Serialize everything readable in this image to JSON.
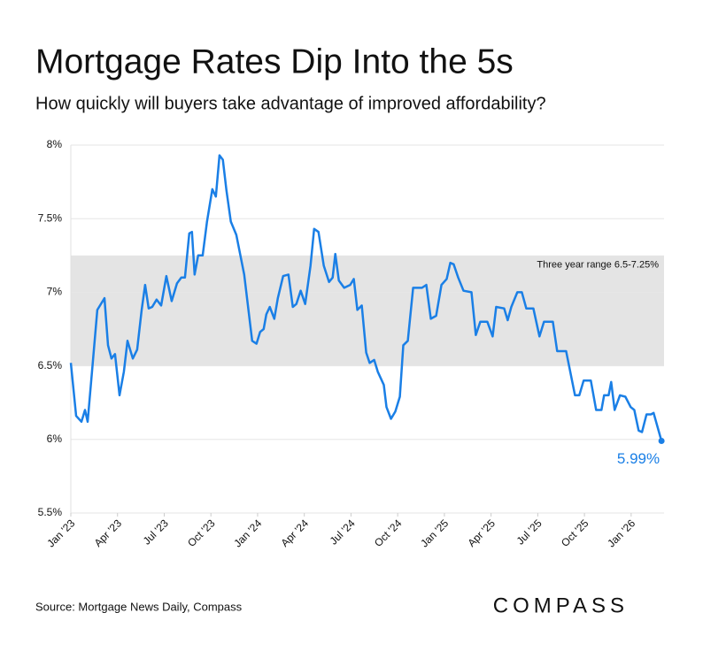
{
  "chart_data": {
    "type": "line",
    "title": "Mortgage Rates Dip Into the 5s",
    "subtitle": "How quickly will buyers take advantage of improved affordability?",
    "source": "Source: Mortgage News Daily, Compass",
    "brand": "COMPASS",
    "band": {
      "range": [
        6.5,
        7.25
      ],
      "label": "Three year range 6.5-7.25%",
      "color": "#e4e4e4"
    },
    "end_label": {
      "x": 37.95,
      "value": 5.99,
      "label": "5.99%"
    },
    "xlim": [
      0,
      38
    ],
    "xticks": [
      {
        "value": 0,
        "label": "Jan '23"
      },
      {
        "value": 3,
        "label": "Apr '23"
      },
      {
        "value": 6,
        "label": "Jul '23"
      },
      {
        "value": 9,
        "label": "Oct '23"
      },
      {
        "value": 12,
        "label": "Jan '24"
      },
      {
        "value": 15,
        "label": "Apr '24"
      },
      {
        "value": 18,
        "label": "Jul '24"
      },
      {
        "value": 21,
        "label": "Oct '24"
      },
      {
        "value": 24,
        "label": "Jan '25"
      },
      {
        "value": 27,
        "label": "Apr '25"
      },
      {
        "value": 30,
        "label": "Jul '25"
      },
      {
        "value": 33,
        "label": "Oct '25"
      },
      {
        "value": 36,
        "label": "Jan '26"
      }
    ],
    "ylim": [
      5.5,
      8
    ],
    "yticks": [
      {
        "value": 5.5,
        "label": "5.5%"
      },
      {
        "value": 6,
        "label": "6%"
      },
      {
        "value": 6.5,
        "label": "6.5%"
      },
      {
        "value": 7,
        "label": "7%"
      },
      {
        "value": 7.5,
        "label": "7.5%"
      },
      {
        "value": 8,
        "label": "8%"
      }
    ],
    "grid": true,
    "series": [
      {
        "color": "#1a7fe6",
        "x": [
          0,
          0.34,
          0.68,
          0.91,
          1.08,
          1.36,
          1.7,
          2.16,
          2.39,
          2.61,
          2.84,
          3.13,
          3.41,
          3.64,
          3.98,
          4.26,
          4.55,
          4.77,
          5,
          5.23,
          5.51,
          5.8,
          6.14,
          6.48,
          6.82,
          7.1,
          7.33,
          7.61,
          7.78,
          7.95,
          8.18,
          8.47,
          8.75,
          9.09,
          9.32,
          9.55,
          9.77,
          10,
          10.28,
          10.63,
          11.14,
          11.65,
          11.93,
          12.16,
          12.39,
          12.56,
          12.78,
          13.07,
          13.3,
          13.64,
          13.98,
          14.26,
          14.49,
          14.77,
          15.06,
          15.4,
          15.63,
          15.91,
          16.25,
          16.59,
          16.82,
          16.99,
          17.22,
          17.56,
          17.95,
          18.18,
          18.41,
          18.69,
          18.98,
          19.2,
          19.49,
          19.72,
          20.11,
          20.28,
          20.57,
          20.85,
          21.14,
          21.36,
          21.65,
          21.99,
          22.27,
          22.56,
          22.84,
          23.13,
          23.47,
          23.81,
          24.15,
          24.38,
          24.6,
          24.89,
          25.23,
          25.74,
          26.02,
          26.31,
          26.76,
          27.1,
          27.33,
          27.84,
          28.07,
          28.3,
          28.69,
          28.98,
          29.26,
          29.72,
          30.11,
          30.4,
          30.97,
          31.25,
          31.82,
          32.39,
          32.67,
          32.95,
          33.41,
          33.75,
          34.09,
          34.26,
          34.55,
          34.72,
          34.94,
          35.28,
          35.63,
          35.97,
          36.2,
          36.48,
          36.7,
          36.99,
          37.27,
          37.44,
          37.95
        ],
        "values": [
          6.52,
          6.16,
          6.12,
          6.2,
          6.12,
          6.46,
          6.88,
          6.96,
          6.64,
          6.55,
          6.58,
          6.3,
          6.46,
          6.67,
          6.55,
          6.61,
          6.88,
          7.05,
          6.89,
          6.9,
          6.95,
          6.91,
          7.11,
          6.94,
          7.06,
          7.1,
          7.1,
          7.4,
          7.41,
          7.12,
          7.25,
          7.25,
          7.48,
          7.7,
          7.65,
          7.93,
          7.9,
          7.69,
          7.48,
          7.39,
          7.12,
          6.67,
          6.65,
          6.73,
          6.75,
          6.85,
          6.9,
          6.82,
          6.96,
          7.11,
          7.12,
          6.9,
          6.92,
          7.01,
          6.92,
          7.18,
          7.43,
          7.41,
          7.18,
          7.07,
          7.1,
          7.26,
          7.08,
          7.03,
          7.05,
          7.09,
          6.88,
          6.91,
          6.59,
          6.52,
          6.54,
          6.46,
          6.37,
          6.22,
          6.14,
          6.19,
          6.29,
          6.64,
          6.67,
          7.03,
          7.03,
          7.03,
          7.05,
          6.82,
          6.84,
          7.05,
          7.09,
          7.2,
          7.19,
          7.1,
          7.01,
          7,
          6.71,
          6.8,
          6.8,
          6.7,
          6.9,
          6.89,
          6.81,
          6.9,
          7,
          7,
          6.89,
          6.89,
          6.7,
          6.8,
          6.8,
          6.6,
          6.6,
          6.3,
          6.3,
          6.4,
          6.4,
          6.2,
          6.2,
          6.3,
          6.3,
          6.39,
          6.2,
          6.3,
          6.29,
          6.22,
          6.2,
          6.06,
          6.05,
          6.17,
          6.17,
          6.18,
          5.99
        ]
      }
    ]
  }
}
